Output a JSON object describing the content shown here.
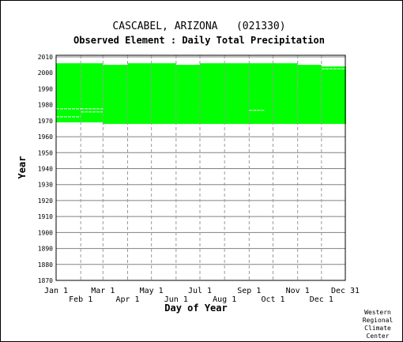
{
  "chart_data": {
    "type": "bar",
    "title": "CASCABEL, ARIZONA   (021330)",
    "subtitle": "Observed Element : Daily Total Precipitation",
    "xlabel": "Day of Year",
    "ylabel": "Year",
    "ylim": [
      1870,
      2011
    ],
    "y_ticks": [
      2010,
      2000,
      1990,
      1980,
      1970,
      1960,
      1950,
      1940,
      1930,
      1920,
      1910,
      1900,
      1890,
      1880,
      1870
    ],
    "x_ticks_upper": [
      {
        "label": "Jan 1",
        "day": 1
      },
      {
        "label": "Mar 1",
        "day": 60
      },
      {
        "label": "May 1",
        "day": 121
      },
      {
        "label": "Jul 1",
        "day": 182
      },
      {
        "label": "Sep 1",
        "day": 244
      },
      {
        "label": "Nov 1",
        "day": 305
      },
      {
        "label": "Dec 31",
        "day": 365
      }
    ],
    "x_ticks_lower": [
      {
        "label": "Feb 1",
        "day": 32
      },
      {
        "label": "Apr 1",
        "day": 91
      },
      {
        "label": "Jun 1",
        "day": 152
      },
      {
        "label": "Aug 1",
        "day": 213
      },
      {
        "label": "Oct 1",
        "day": 274
      },
      {
        "label": "Dec 1",
        "day": 335
      }
    ],
    "xlim": [
      1,
      365
    ],
    "grid": true,
    "color": "#00ff00",
    "coverage": [
      {
        "day_start": 1,
        "day_end": 31,
        "year_start": 1969,
        "year_end": 2005
      },
      {
        "day_start": 32,
        "day_end": 59,
        "year_start": 1969,
        "year_end": 2005
      },
      {
        "day_start": 60,
        "day_end": 90,
        "year_start": 1968,
        "year_end": 2004
      },
      {
        "day_start": 91,
        "day_end": 151,
        "year_start": 1968,
        "year_end": 2005
      },
      {
        "day_start": 152,
        "day_end": 181,
        "year_start": 1968,
        "year_end": 2004
      },
      {
        "day_start": 182,
        "day_end": 304,
        "year_start": 1968,
        "year_end": 2005
      },
      {
        "day_start": 305,
        "day_end": 334,
        "year_start": 1968,
        "year_end": 2004
      },
      {
        "day_start": 335,
        "day_end": 365,
        "year_start": 1968,
        "year_end": 2003
      }
    ],
    "gaps": [
      {
        "day_start": 1,
        "day_end": 31,
        "year": 1972
      },
      {
        "day_start": 1,
        "day_end": 31,
        "year": 1977
      },
      {
        "day_start": 32,
        "day_end": 59,
        "year": 1975
      },
      {
        "day_start": 32,
        "day_end": 59,
        "year": 1977
      },
      {
        "day_start": 244,
        "day_end": 262,
        "year": 1976
      },
      {
        "day_start": 335,
        "day_end": 365,
        "year": 2002
      }
    ],
    "credit": [
      "Western",
      "Regional",
      "Climate",
      "Center"
    ]
  }
}
